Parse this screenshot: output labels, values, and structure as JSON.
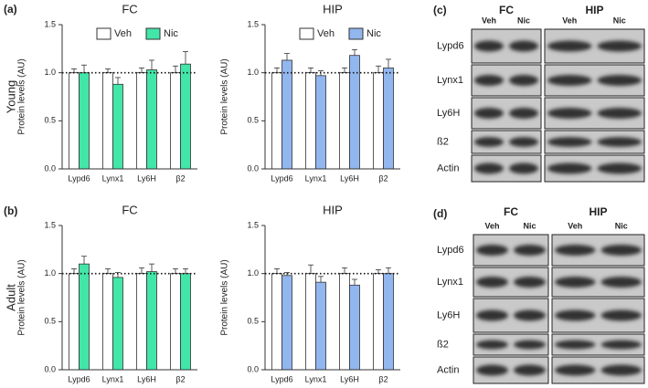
{
  "panel_labels": [
    "(a)",
    "(b)",
    "(c)",
    "(d)"
  ],
  "row_labels": [
    "Young",
    "Adult"
  ],
  "chart_data": [
    {
      "type": "bar",
      "title": "FC",
      "ylabel": "Protein levels (AU)",
      "categories": [
        "Lypd6",
        "Lynx1",
        "Ly6H",
        "β2"
      ],
      "series": [
        {
          "name": "Veh",
          "color": "#ffffff",
          "values": [
            1.0,
            1.0,
            1.0,
            1.0
          ],
          "errors": [
            0.04,
            0.04,
            0.05,
            0.07
          ]
        },
        {
          "name": "Nic",
          "color": "#42e6a8",
          "values": [
            1.0,
            0.88,
            1.03,
            1.09
          ],
          "errors": [
            0.08,
            0.07,
            0.1,
            0.13
          ]
        }
      ],
      "ylim": [
        0,
        1.5
      ],
      "yticks": [
        {
          "value": 0,
          "label": "0.0"
        },
        {
          "value": 0.5,
          "label": "0.5"
        },
        {
          "value": 1,
          "label": "1.0"
        },
        {
          "value": 1.5,
          "label": "1.5"
        }
      ],
      "hline": 1,
      "legend": "top-right"
    },
    {
      "type": "bar",
      "title": "HIP",
      "ylabel": "Protein levels (AU)",
      "categories": [
        "Lypd6",
        "Lynx1",
        "Ly6H",
        "β2"
      ],
      "series": [
        {
          "name": "Veh",
          "color": "#ffffff",
          "values": [
            1.0,
            1.0,
            1.0,
            1.0
          ],
          "errors": [
            0.05,
            0.05,
            0.05,
            0.07
          ]
        },
        {
          "name": "Nic",
          "color": "#92b6ee",
          "values": [
            1.13,
            0.97,
            1.18,
            1.05
          ],
          "errors": [
            0.07,
            0.05,
            0.06,
            0.09
          ]
        }
      ],
      "ylim": [
        0,
        1.5
      ],
      "yticks": [
        {
          "value": 0,
          "label": "0.0"
        },
        {
          "value": 0.5,
          "label": "0.5"
        },
        {
          "value": 1,
          "label": "1.0"
        },
        {
          "value": 1.5,
          "label": "1.5"
        }
      ],
      "hline": 1,
      "legend": "top-right"
    },
    {
      "type": "bar",
      "title": "FC",
      "ylabel": "Protein levels (AU)",
      "categories": [
        "Lypd6",
        "Lynx1",
        "Ly6H",
        "β2"
      ],
      "series": [
        {
          "name": "Veh",
          "color": "#ffffff",
          "values": [
            1.0,
            1.0,
            1.0,
            1.0
          ],
          "errors": [
            0.05,
            0.05,
            0.06,
            0.05
          ]
        },
        {
          "name": "Nic",
          "color": "#42e6a8",
          "values": [
            1.1,
            0.96,
            1.02,
            1.0
          ],
          "errors": [
            0.08,
            0.05,
            0.08,
            0.05
          ]
        }
      ],
      "ylim": [
        0,
        1.5
      ],
      "yticks": [
        {
          "value": 0,
          "label": "0.0"
        },
        {
          "value": 0.5,
          "label": "0.5"
        },
        {
          "value": 1,
          "label": "1.0"
        },
        {
          "value": 1.5,
          "label": "1.5"
        }
      ],
      "hline": 1
    },
    {
      "type": "bar",
      "title": "HIP",
      "ylabel": "Protein levels (AU)",
      "categories": [
        "Lypd6",
        "Lynx1",
        "Ly6H",
        "β2"
      ],
      "series": [
        {
          "name": "Veh",
          "color": "#ffffff",
          "values": [
            1.0,
            1.0,
            1.0,
            1.0
          ],
          "errors": [
            0.05,
            0.09,
            0.06,
            0.04
          ]
        },
        {
          "name": "Nic",
          "color": "#92b6ee",
          "values": [
            0.98,
            0.91,
            0.88,
            1.0
          ],
          "errors": [
            0.03,
            0.06,
            0.06,
            0.06
          ]
        }
      ],
      "ylim": [
        0,
        1.5
      ],
      "yticks": [
        {
          "value": 0,
          "label": "0.0"
        },
        {
          "value": 0.5,
          "label": "0.5"
        },
        {
          "value": 1,
          "label": "1.0"
        },
        {
          "value": 1.5,
          "label": "1.5"
        }
      ],
      "hline": 1
    }
  ],
  "blots": [
    {
      "groups": [
        "FC",
        "HIP"
      ],
      "lanes": [
        "Veh",
        "Nic"
      ],
      "rows": [
        "Lypd6",
        "Lynx1",
        "Ly6H",
        "ß2",
        "Actin"
      ]
    },
    {
      "groups": [
        "FC",
        "HIP"
      ],
      "lanes": [
        "Veh",
        "Nic"
      ],
      "rows": [
        "Lypd6",
        "Lynx1",
        "Ly6H",
        "ß2",
        "Actin"
      ]
    }
  ]
}
